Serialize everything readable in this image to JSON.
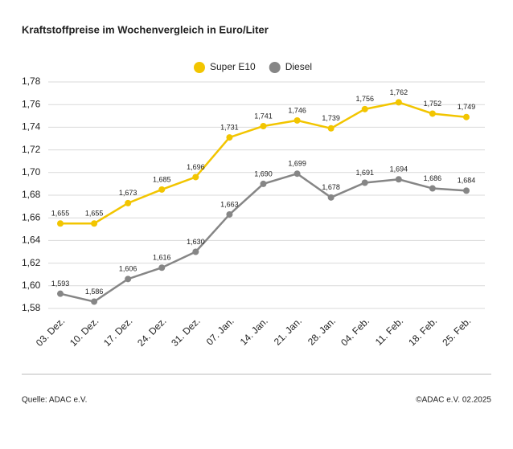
{
  "chart_data": {
    "type": "line",
    "title": "Kraftstoffpreise im Wochenvergleich in Euro/Liter",
    "categories": [
      "03. Dez.",
      "10. Dez.",
      "17. Dez.",
      "24. Dez.",
      "31. Dez.",
      "07. Jan.",
      "14. Jan.",
      "21. Jan.",
      "28. Jan.",
      "04. Feb.",
      "11. Feb.",
      "18. Feb.",
      "25. Feb."
    ],
    "series": [
      {
        "name": "Super E10",
        "color": "#f2c500",
        "values": [
          1.655,
          1.655,
          1.673,
          1.685,
          1.696,
          1.731,
          1.741,
          1.746,
          1.739,
          1.756,
          1.762,
          1.752,
          1.749
        ],
        "value_labels": [
          "1,655",
          "1,655",
          "1,673",
          "1,685",
          "1,696",
          "1,731",
          "1,741",
          "1,746",
          "1,739",
          "1,756",
          "1,762",
          "1,752",
          "1,749"
        ]
      },
      {
        "name": "Diesel",
        "color": "#868686",
        "values": [
          1.593,
          1.586,
          1.606,
          1.616,
          1.63,
          1.663,
          1.69,
          1.699,
          1.678,
          1.691,
          1.694,
          1.686,
          1.684
        ],
        "value_labels": [
          "1,593",
          "1,586",
          "1,606",
          "1,616",
          "1,630",
          "1,663",
          "1,690",
          "1,699",
          "1,678",
          "1,691",
          "1,694",
          "1,686",
          "1,684"
        ]
      }
    ],
    "ylim": [
      1.58,
      1.78
    ],
    "yticks": [
      {
        "value": 1.58,
        "label": "1,58"
      },
      {
        "value": 1.6,
        "label": "1,60"
      },
      {
        "value": 1.62,
        "label": "1,62"
      },
      {
        "value": 1.64,
        "label": "1,64"
      },
      {
        "value": 1.66,
        "label": "1,66"
      },
      {
        "value": 1.68,
        "label": "1,68"
      },
      {
        "value": 1.7,
        "label": "1,70"
      },
      {
        "value": 1.72,
        "label": "1,72"
      },
      {
        "value": 1.74,
        "label": "1,74"
      },
      {
        "value": 1.76,
        "label": "1,76"
      },
      {
        "value": 1.78,
        "label": "1,78"
      }
    ],
    "grid": true,
    "legend": "top",
    "source": "Quelle: ADAC e.V.",
    "credit": "©ADAC e.V. 02.2025"
  }
}
